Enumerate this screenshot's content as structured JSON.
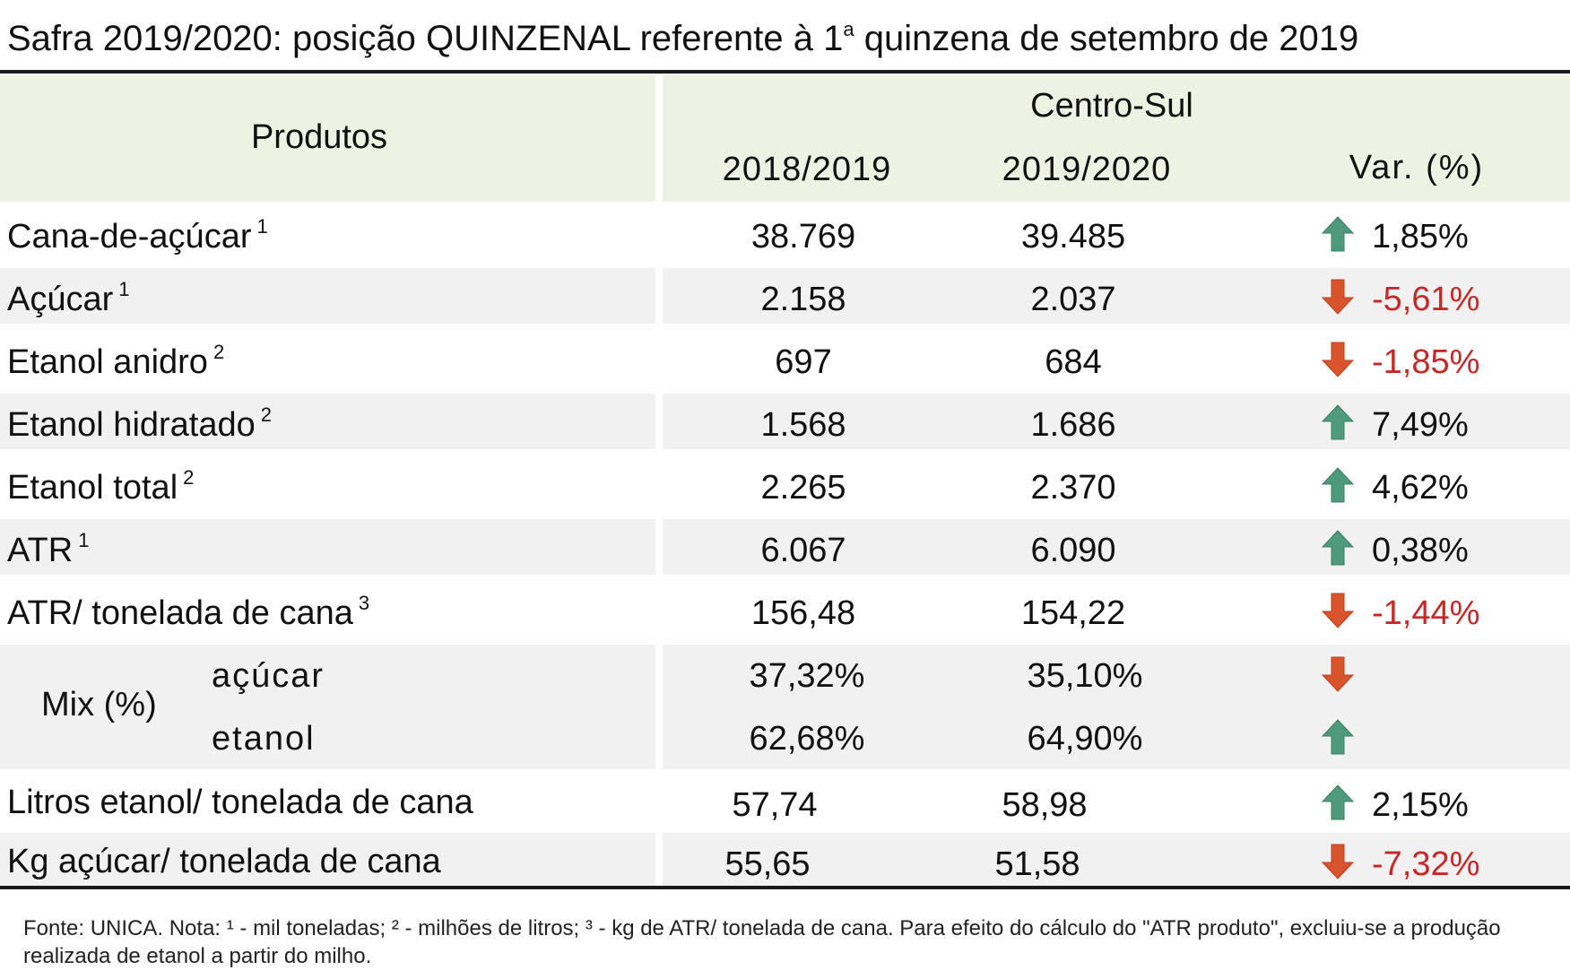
{
  "title": {
    "text": "Safra 2019/2020: posição QUINZENAL referente à 1",
    "sup": "a",
    "text_end": " quinzena de setembro de 2019"
  },
  "header": {
    "produtos": "Produtos",
    "region": "Centro-Sul",
    "col1": "2018/2019",
    "col2": "2019/2020",
    "col3": "Var. (%)"
  },
  "rows": [
    {
      "label": "Cana-de-açúcar",
      "note": "1",
      "v1": "38.769",
      "v2": "39.485",
      "dir": "up",
      "var": "1,85%"
    },
    {
      "label": "Açúcar",
      "note": "1",
      "v1": "2.158",
      "v2": "2.037",
      "dir": "down",
      "var": "-5,61%"
    },
    {
      "label": "Etanol anidro",
      "note": "2",
      "v1": "697",
      "v2": "684",
      "dir": "down",
      "var": "-1,85%"
    },
    {
      "label": "Etanol hidratado",
      "note": "2",
      "v1": "1.568",
      "v2": "1.686",
      "dir": "up",
      "var": "7,49%"
    },
    {
      "label": "Etanol total",
      "note": "2",
      "v1": "2.265",
      "v2": "2.370",
      "dir": "up",
      "var": "4,62%"
    },
    {
      "label": "ATR",
      "note": "1",
      "v1": "6.067",
      "v2": "6.090",
      "dir": "up",
      "var": "0,38%"
    },
    {
      "label": "ATR/ tonelada de cana",
      "note": "3",
      "v1": "156,48",
      "v2": "154,22",
      "dir": "down",
      "var": "-1,44%"
    }
  ],
  "mix": {
    "label": "Mix (%)",
    "items": [
      {
        "label": "açúcar",
        "v1": "37,32%",
        "v2": "35,10%",
        "dir": "down"
      },
      {
        "label": "etanol",
        "v1": "62,68%",
        "v2": "64,90%",
        "dir": "up"
      }
    ]
  },
  "rows_after": [
    {
      "label": "Litros etanol/ tonelada de cana",
      "v1": "57,74",
      "v2": "58,98",
      "dir": "up",
      "var": "2,15%"
    },
    {
      "label": "Kg açúcar/ tonelada de cana",
      "v1": "55,65",
      "v2": "51,58",
      "dir": "down",
      "var": "-7,32%"
    }
  ],
  "footnote": "Fonte: UNICA. Nota: ¹ - mil toneladas; ² - milhões de litros; ³ - kg de ATR/ tonelada de cana. Para efeito do cálculo do \"ATR produto\", excluiu-se a produção realizada de etanol a partir do milho.",
  "colors": {
    "up": "#4f9a7e",
    "down": "#d9532c",
    "negative_text": "#c62828",
    "header_bg": "#eef2e2",
    "band_bg": "#f1f1f1"
  }
}
